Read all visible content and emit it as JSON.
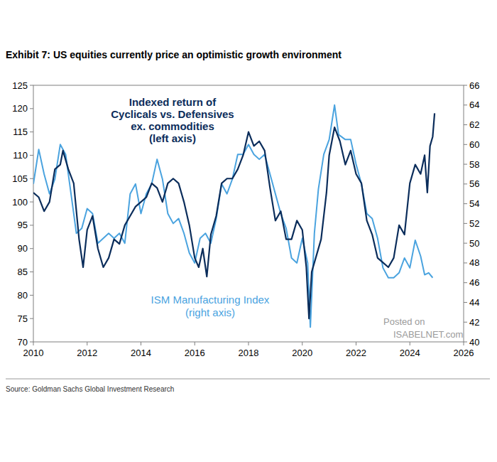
{
  "chart_data": {
    "type": "line",
    "title": "Exhibit 7: US equities currently price an optimistic growth environment",
    "source": "Source: Goldman Sachs Global Investment Research",
    "annotations": [
      [
        "Indexed return of",
        "Cyclicals vs. Defensives",
        "ex. commodities",
        "(left axis)"
      ],
      [
        "ISM Manufacturing Index",
        "(right axis)"
      ],
      [
        "Posted on",
        "ISABELNET.com"
      ]
    ],
    "xlim": [
      2010,
      2026
    ],
    "xticks": [
      2010,
      2012,
      2014,
      2016,
      2018,
      2020,
      2022,
      2024,
      2026
    ],
    "ylim": [
      70,
      125
    ],
    "yticks": [
      70,
      75,
      80,
      85,
      90,
      95,
      100,
      105,
      110,
      115,
      120,
      125
    ],
    "y2lim": [
      40,
      66
    ],
    "y2ticks": [
      40,
      42,
      44,
      46,
      48,
      50,
      52,
      54,
      56,
      58,
      60,
      62,
      64,
      66
    ],
    "grid": false,
    "series": [
      {
        "color": "#0b2d5b",
        "axis": "y",
        "x": [
          2010.0,
          2010.2,
          2010.4,
          2010.6,
          2010.8,
          2011.0,
          2011.1,
          2011.3,
          2011.5,
          2011.7,
          2011.85,
          2012.0,
          2012.2,
          2012.4,
          2012.6,
          2012.8,
          2013.0,
          2013.2,
          2013.4,
          2013.6,
          2013.8,
          2014.0,
          2014.2,
          2014.4,
          2014.6,
          2014.8,
          2015.0,
          2015.2,
          2015.4,
          2015.6,
          2015.8,
          2016.0,
          2016.15,
          2016.3,
          2016.45,
          2016.6,
          2016.8,
          2017.0,
          2017.2,
          2017.4,
          2017.6,
          2017.8,
          2018.0,
          2018.2,
          2018.4,
          2018.6,
          2018.8,
          2019.0,
          2019.2,
          2019.4,
          2019.6,
          2019.8,
          2020.0,
          2020.15,
          2020.25,
          2020.35,
          2020.5,
          2020.7,
          2020.9,
          2021.0,
          2021.2,
          2021.4,
          2021.6,
          2021.8,
          2022.0,
          2022.2,
          2022.4,
          2022.6,
          2022.8,
          2023.0,
          2023.2,
          2023.4,
          2023.6,
          2023.8,
          2024.0,
          2024.2,
          2024.4,
          2024.55,
          2024.65,
          2024.75,
          2024.85,
          2024.92
        ],
        "values": [
          102,
          101,
          98,
          100,
          107,
          108,
          111,
          107,
          104,
          92,
          86,
          94,
          97,
          90,
          86,
          88,
          92,
          91,
          95,
          97,
          99,
          100,
          101,
          104,
          103,
          100,
          104,
          105,
          104,
          100,
          95,
          88,
          86,
          90,
          84,
          93,
          97,
          104,
          105,
          105,
          107,
          110,
          115,
          112,
          113,
          111,
          103,
          96,
          98,
          92,
          92,
          96,
          94,
          86,
          75,
          85,
          88,
          92,
          102,
          110,
          116,
          113,
          108,
          111,
          106,
          104,
          96,
          93,
          88,
          87,
          86,
          88,
          95,
          93,
          104,
          108,
          106,
          110,
          102,
          112,
          114,
          119
        ]
      },
      {
        "color": "#4aa3df",
        "axis": "y2",
        "x": [
          2010.0,
          2010.2,
          2010.4,
          2010.6,
          2010.8,
          2011.0,
          2011.2,
          2011.4,
          2011.6,
          2011.8,
          2012.0,
          2012.2,
          2012.4,
          2012.6,
          2012.8,
          2013.0,
          2013.2,
          2013.4,
          2013.6,
          2013.8,
          2014.0,
          2014.2,
          2014.4,
          2014.6,
          2014.8,
          2015.0,
          2015.2,
          2015.4,
          2015.6,
          2015.8,
          2016.0,
          2016.2,
          2016.4,
          2016.6,
          2016.8,
          2017.0,
          2017.2,
          2017.4,
          2017.6,
          2017.8,
          2018.0,
          2018.2,
          2018.4,
          2018.6,
          2018.8,
          2019.0,
          2019.2,
          2019.4,
          2019.6,
          2019.8,
          2020.0,
          2020.2,
          2020.3,
          2020.45,
          2020.6,
          2020.8,
          2021.0,
          2021.2,
          2021.35,
          2021.6,
          2021.8,
          2022.0,
          2022.2,
          2022.4,
          2022.6,
          2022.8,
          2023.0,
          2023.2,
          2023.4,
          2023.6,
          2023.8,
          2024.0,
          2024.2,
          2024.4,
          2024.55,
          2024.7,
          2024.85
        ],
        "values": [
          56,
          59.5,
          57,
          55,
          56.5,
          60,
          59,
          55,
          51,
          51.5,
          53.5,
          53,
          50,
          50.5,
          51,
          50.5,
          51,
          50,
          55,
          56,
          53,
          55,
          56,
          58.5,
          56.5,
          53,
          52,
          52.5,
          51,
          49,
          48,
          50.5,
          51,
          50,
          52.5,
          56,
          55,
          56.5,
          59,
          59,
          60,
          59,
          58.5,
          59,
          57,
          55,
          53,
          51.5,
          48.5,
          48,
          50.5,
          48,
          41.5,
          51,
          55.5,
          59,
          60.5,
          64,
          61,
          60.5,
          60.5,
          58,
          56,
          53,
          52.5,
          50.5,
          47.5,
          46.5,
          46.5,
          47,
          48.5,
          47.5,
          50.3,
          48.7,
          46.8,
          47,
          46.5
        ]
      }
    ]
  }
}
